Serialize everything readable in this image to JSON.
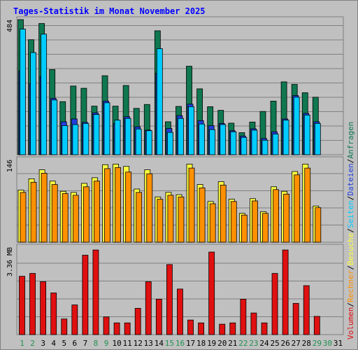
{
  "title": "Tages-Statistik im Monat November 2025",
  "colors": {
    "anfragen": "#0f7850",
    "dateien": "#1f3fe0",
    "seiten": "#00ccff",
    "besuche": "#ffff40",
    "rechner": "#ff9000",
    "volumen": "#e01010",
    "weekday": "#000000",
    "weekend": "#1f9050"
  },
  "chart_data": [
    {
      "type": "bar",
      "name": "hits",
      "ylim": [
        0,
        484
      ],
      "ytick_label": "484",
      "series": [
        {
          "name": "Anfragen",
          "values": [
            484,
            412,
            470,
            305,
            190,
            246,
            238,
            174,
            283,
            174,
            248,
            166,
            180,
            444,
            118,
            173,
            317,
            236,
            172,
            159,
            113,
            79,
            117,
            155,
            192,
            261,
            252,
            222,
            206
          ]
        },
        {
          "name": "Dateien",
          "values": [
            300,
            255,
            280,
            202,
            118,
            128,
            116,
            150,
            192,
            112,
            136,
            100,
            88,
            292,
            94,
            140,
            181,
            122,
            104,
            112,
            86,
            67,
            93,
            58,
            82,
            128,
            212,
            148,
            118
          ]
        },
        {
          "name": "Seiten",
          "values": [
            450,
            366,
            432,
            196,
            104,
            108,
            112,
            144,
            186,
            124,
            130,
            92,
            86,
            380,
            80,
            130,
            172,
            110,
            90,
            108,
            82,
            62,
            88,
            52,
            74,
            124,
            206,
            142,
            112
          ]
        }
      ]
    },
    {
      "type": "bar",
      "name": "visits",
      "ylim": [
        0,
        146
      ],
      "ytick_label": "146",
      "series": [
        {
          "name": "Besuche",
          "values": [
            92,
            112,
            128,
            108,
            90,
            88,
            104,
            114,
            137,
            138,
            134,
            94,
            128,
            80,
            88,
            84,
            138,
            102,
            72,
            107,
            76,
            51,
            77,
            54,
            98,
            90,
            125,
            138,
            64
          ]
        },
        {
          "name": "Rechner",
          "values": [
            88,
            106,
            122,
            102,
            86,
            83,
            98,
            108,
            130,
            132,
            124,
            88,
            121,
            76,
            83,
            80,
            131,
            96,
            68,
            101,
            72,
            48,
            73,
            51,
            93,
            85,
            119,
            131,
            61
          ]
        }
      ]
    },
    {
      "type": "bar",
      "name": "volume",
      "ylim": [
        0,
        3.36
      ],
      "ytick_label": "3.36 MB",
      "series": [
        {
          "name": "Volumen",
          "values": [
            2.24,
            2.35,
            2.03,
            1.6,
            0.6,
            1.14,
            3.05,
            3.25,
            0.68,
            0.45,
            0.45,
            1.01,
            2.03,
            1.36,
            2.69,
            1.75,
            0.56,
            0.45,
            3.17,
            0.4,
            0.45,
            1.36,
            0.83,
            0.45,
            2.35,
            3.25,
            1.2,
            1.88,
            0.7
          ]
        }
      ]
    }
  ],
  "days": [
    "1",
    "2",
    "3",
    "4",
    "5",
    "6",
    "7",
    "8",
    "9",
    "10",
    "11",
    "12",
    "13",
    "14",
    "15",
    "16",
    "17",
    "18",
    "19",
    "20",
    "21",
    "22",
    "23",
    "24",
    "25",
    "26",
    "27",
    "28",
    "29",
    "30",
    "31"
  ],
  "weekend_days": [
    "1",
    "2",
    "8",
    "9",
    "15",
    "16",
    "22",
    "23",
    "29",
    "30"
  ],
  "legend_right_top": [
    "Anfragen",
    "Dateien",
    "Seiten"
  ],
  "legend_right_bottom": [
    "Besuche",
    "Rechner",
    "Volumen"
  ]
}
